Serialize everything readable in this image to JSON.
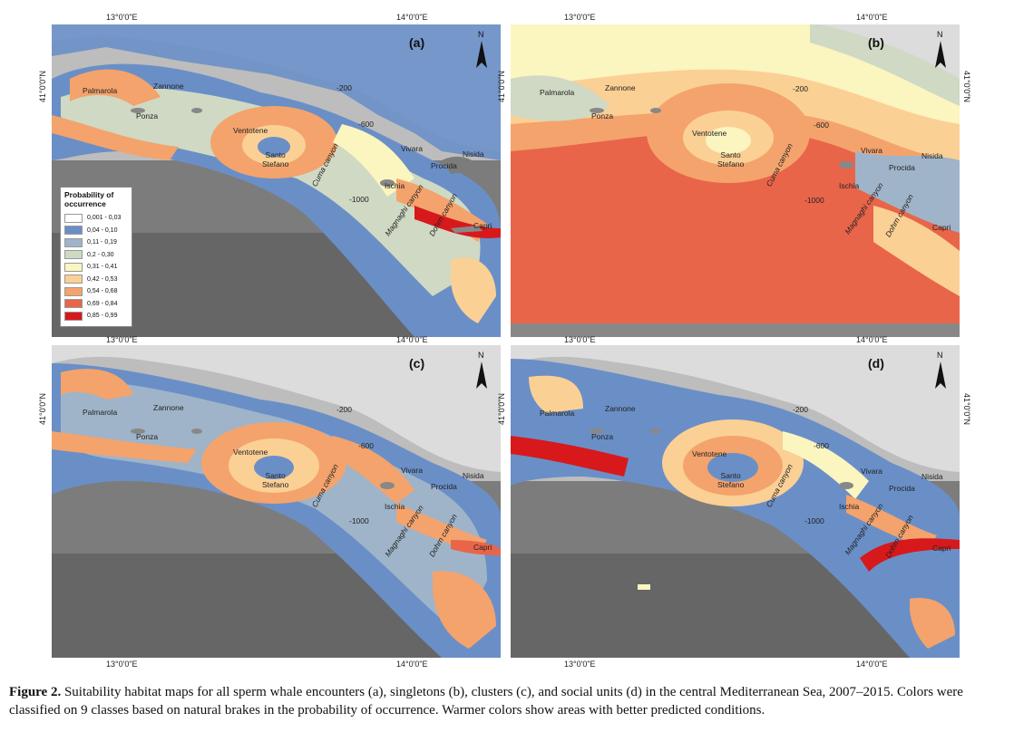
{
  "figure": {
    "caption_label": "Figure 2.",
    "caption_text": "Suitability habitat maps for all sperm whale encounters (a), singletons (b), clusters (c), and social units (d) in the central Mediterranean Sea, 2007–2015. Colors were classified on 9 classes based on natural brakes in the probability of occurrence. Warmer colors show areas with better predicted conditions."
  },
  "axes": {
    "lon_ticks": [
      "13°0'0\"E",
      "14°0'0\"E"
    ],
    "lat_tick": "41°0'0\"N"
  },
  "panels": [
    {
      "id": "a",
      "letter": "(a)"
    },
    {
      "id": "b",
      "letter": "(b)"
    },
    {
      "id": "c",
      "letter": "(c)"
    },
    {
      "id": "d",
      "letter": "(d)"
    }
  ],
  "north_arrow": "N",
  "places": {
    "palmarola": "Palmarola",
    "zannone": "Zannone",
    "ponza": "Ponza",
    "ventotene": "Ventotene",
    "santo_stefano": "Santo\nStefano",
    "vivara": "Vivara",
    "nisida": "Nisida",
    "procida": "Procida",
    "ischia": "Ischia",
    "capri": "Capri",
    "cuma": "Cuma canyon",
    "magnaghi": "Magnaghi canyon",
    "dohrn": "Dohrn canyon",
    "d200": "-200",
    "d600": "-600",
    "d1000": "-1000"
  },
  "legend": {
    "title": "Probability of occurrence",
    "classes": [
      {
        "label": "0,001 - 0,03",
        "color": "#ffffff"
      },
      {
        "label": "0,04 - 0,10",
        "color": "#6a8fc7"
      },
      {
        "label": "0,11 - 0,19",
        "color": "#9fb4c9"
      },
      {
        "label": "0,2 - 0,30",
        "color": "#cfd9c4"
      },
      {
        "label": "0,31 - 0,41",
        "color": "#fbf5bf"
      },
      {
        "label": "0,42 - 0,53",
        "color": "#fbd095"
      },
      {
        "label": "0,54 - 0,68",
        "color": "#f4a36c"
      },
      {
        "label": "0,69 - 0,84",
        "color": "#e8654a"
      },
      {
        "label": "0,85 - 0,99",
        "color": "#d7191c"
      }
    ]
  }
}
